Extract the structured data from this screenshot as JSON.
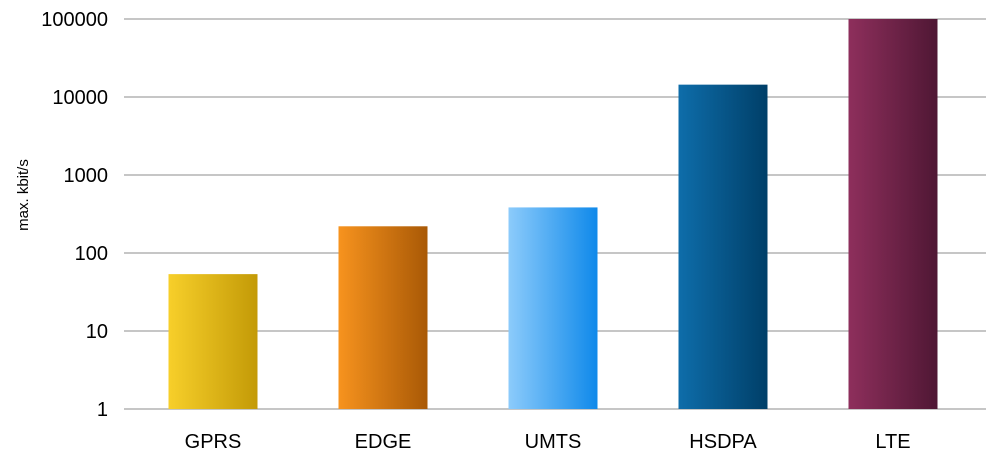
{
  "chart_data": {
    "type": "bar",
    "title": "",
    "xlabel": "",
    "ylabel": "max. kbit/s",
    "yscale": "log",
    "ylim": [
      1,
      100000
    ],
    "yticks": [
      1,
      10,
      100,
      1000,
      10000,
      100000
    ],
    "ytick_labels": [
      "1",
      "10",
      "100",
      "1000",
      "10000",
      "100000"
    ],
    "grid": true,
    "legend": "none",
    "categories": [
      "GPRS",
      "EDGE",
      "UMTS",
      "HSDPA",
      "LTE"
    ],
    "values": [
      53.6,
      220,
      384,
      14400,
      100000
    ],
    "colors": [
      {
        "light": "#f7cf2a",
        "dark": "#c39a07"
      },
      {
        "light": "#f7931e",
        "dark": "#a95906"
      },
      {
        "light": "#8ccbfb",
        "dark": "#0f89ea"
      },
      {
        "light": "#0e6daa",
        "dark": "#003f68"
      },
      {
        "light": "#8e2f5c",
        "dark": "#4f1734"
      }
    ],
    "grid_color": "#b3b3b3"
  }
}
